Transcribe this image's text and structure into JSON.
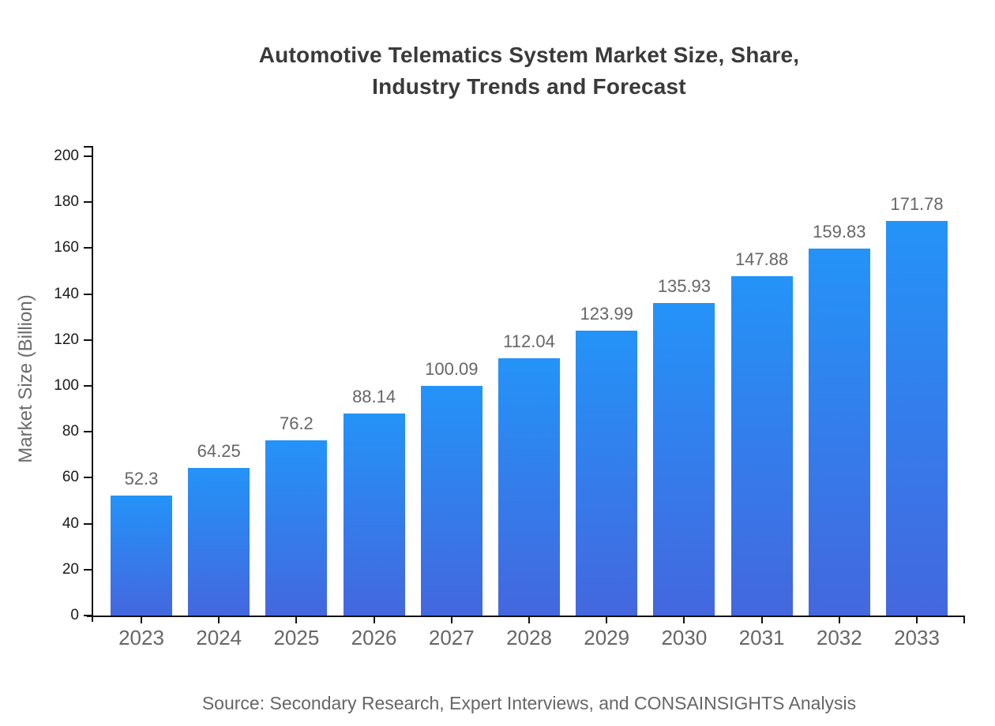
{
  "title": {
    "line1": "Automotive Telematics System Market Size, Share,",
    "line2": "Industry Trends and Forecast"
  },
  "source": "Source: Secondary Research, Expert Interviews, and CONSAINSIGHTS Analysis",
  "chart_data": {
    "type": "bar",
    "title": "Automotive Telematics System Market Size, Share, Industry Trends and Forecast",
    "categories": [
      "2023",
      "2024",
      "2025",
      "2026",
      "2027",
      "2028",
      "2029",
      "2030",
      "2031",
      "2032",
      "2033"
    ],
    "values": [
      52.3,
      64.25,
      76.2,
      88.14,
      100.09,
      112.04,
      123.99,
      135.93,
      147.88,
      159.83,
      171.78
    ],
    "value_labels": [
      "52.3",
      "64.25",
      "76.2",
      "88.14",
      "100.09",
      "112.04",
      "123.99",
      "135.93",
      "147.88",
      "159.83",
      "171.78"
    ],
    "xlabel": "",
    "ylabel": "Market Size (Billion)",
    "ylim": [
      0,
      205
    ],
    "yticks": [
      0,
      20,
      40,
      60,
      80,
      100,
      120,
      140,
      160,
      180,
      200
    ],
    "grid": false,
    "legend": "none",
    "bar_gradient_top": "#2493f8",
    "bar_gradient_bottom": "#4467de"
  },
  "colors": {
    "title": "#3a3a3a",
    "axis": "#111111",
    "y_tick_label": "#1a1a1a",
    "x_tick_label": "#666666",
    "value_label": "#666666",
    "axis_title": "#6b6b6b",
    "source_text": "#666666",
    "background": "#ffffff"
  }
}
